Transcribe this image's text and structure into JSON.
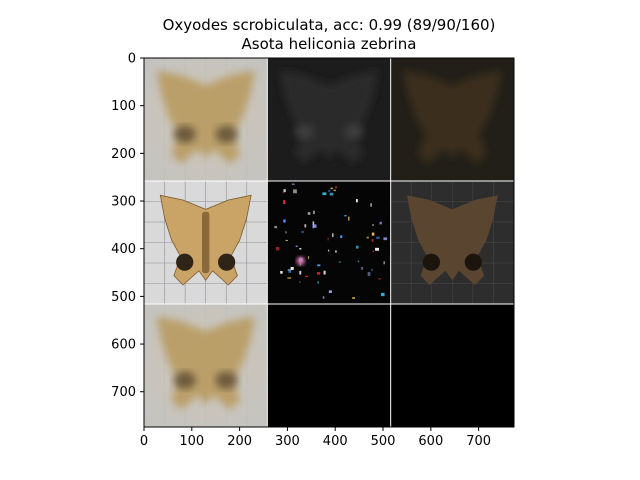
{
  "figure": {
    "title_line1": "Oxyodes scrobiculata, acc: 0.99 (89/90/160)",
    "title_line2": "Asota heliconia zebrina"
  },
  "chart_data": {
    "type": "heatmap",
    "title": "Oxyodes scrobiculata, acc: 0.99 (89/90/160)",
    "subtitle": "Asota heliconia zebrina",
    "xlabel": "",
    "ylabel": "",
    "xlim": [
      0,
      774
    ],
    "ylim": [
      774,
      0
    ],
    "x_ticks": [
      0,
      100,
      200,
      300,
      400,
      500,
      600,
      700
    ],
    "y_ticks": [
      0,
      100,
      200,
      300,
      400,
      500,
      600,
      700
    ],
    "grid": false,
    "legend": "none",
    "grid_rows": 3,
    "grid_cols": 3,
    "tile_size": 258,
    "tiles": [
      {
        "row": 0,
        "col": 0,
        "content": "blurred moth average",
        "tone": "#c9bfae"
      },
      {
        "row": 0,
        "col": 1,
        "content": "dark faint moth activation",
        "tone": "#1c1c1c"
      },
      {
        "row": 0,
        "col": 2,
        "content": "dark brownish moth overlay",
        "tone": "#221f19"
      },
      {
        "row": 1,
        "col": 0,
        "content": "moth specimen photo on grid paper",
        "tone": "#d7d7d7"
      },
      {
        "row": 1,
        "col": 1,
        "content": "sparse colorful noise on black",
        "tone": "#050505"
      },
      {
        "row": 1,
        "col": 2,
        "content": "dark masked moth specimen",
        "tone": "#2d2d2d"
      },
      {
        "row": 2,
        "col": 0,
        "content": "blurred moth average",
        "tone": "#c9bfae"
      },
      {
        "row": 2,
        "col": 1,
        "content": "black",
        "tone": "#000000"
      },
      {
        "row": 2,
        "col": 2,
        "content": "black",
        "tone": "#000000"
      }
    ]
  }
}
